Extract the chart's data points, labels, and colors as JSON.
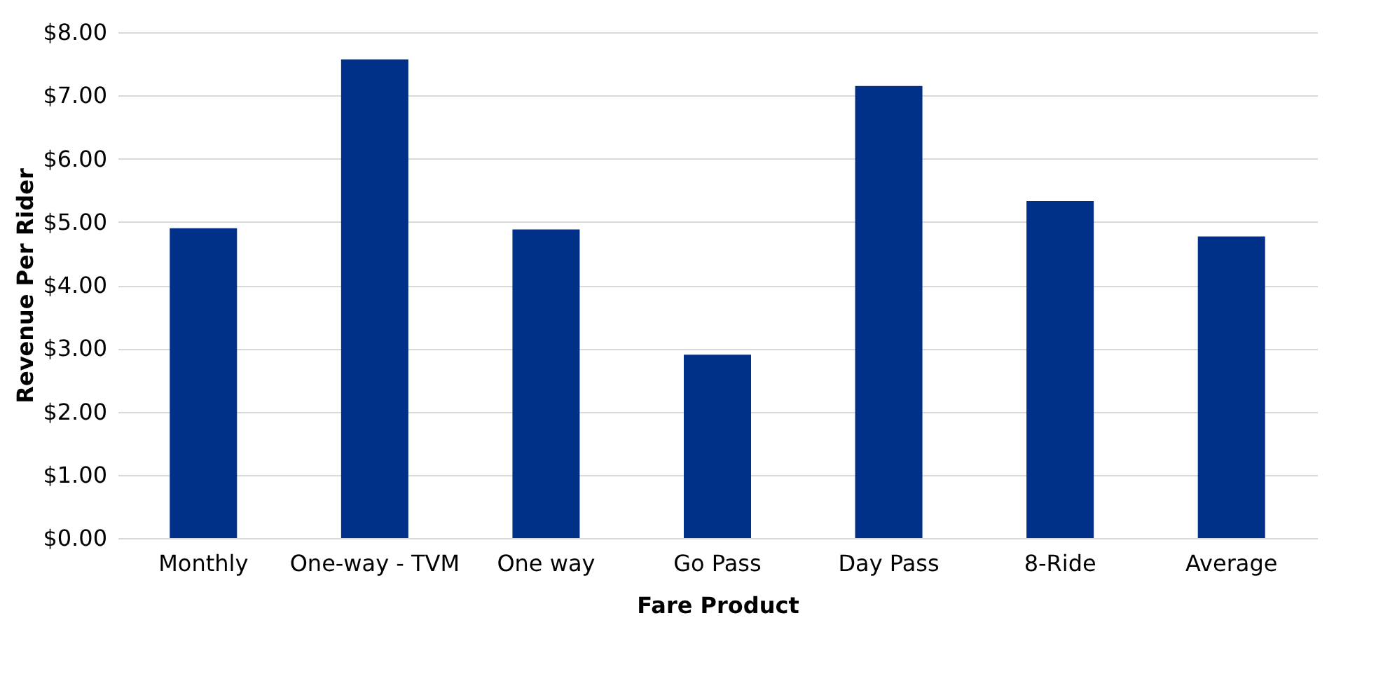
{
  "chart_data": {
    "type": "bar",
    "xlabel": "Fare Product",
    "ylabel": "Revenue Per Rider",
    "categories": [
      "Monthly",
      "One-way - TVM",
      "One way",
      "Go Pass",
      "Day Pass",
      "8-Ride",
      "Average"
    ],
    "values": [
      4.9,
      7.57,
      4.88,
      2.9,
      7.15,
      5.33,
      4.77
    ],
    "color": "#003087",
    "ylim": [
      0,
      8
    ],
    "yticks": [
      {
        "value": 0,
        "label": "$0.00"
      },
      {
        "value": 1,
        "label": "$1.00"
      },
      {
        "value": 2,
        "label": "$2.00"
      },
      {
        "value": 3,
        "label": "$3.00"
      },
      {
        "value": 4,
        "label": "$4.00"
      },
      {
        "value": 5,
        "label": "$5.00"
      },
      {
        "value": 6,
        "label": "$6.00"
      },
      {
        "value": 7,
        "label": "$7.00"
      },
      {
        "value": 8,
        "label": "$8.00"
      }
    ],
    "grid": "y"
  }
}
